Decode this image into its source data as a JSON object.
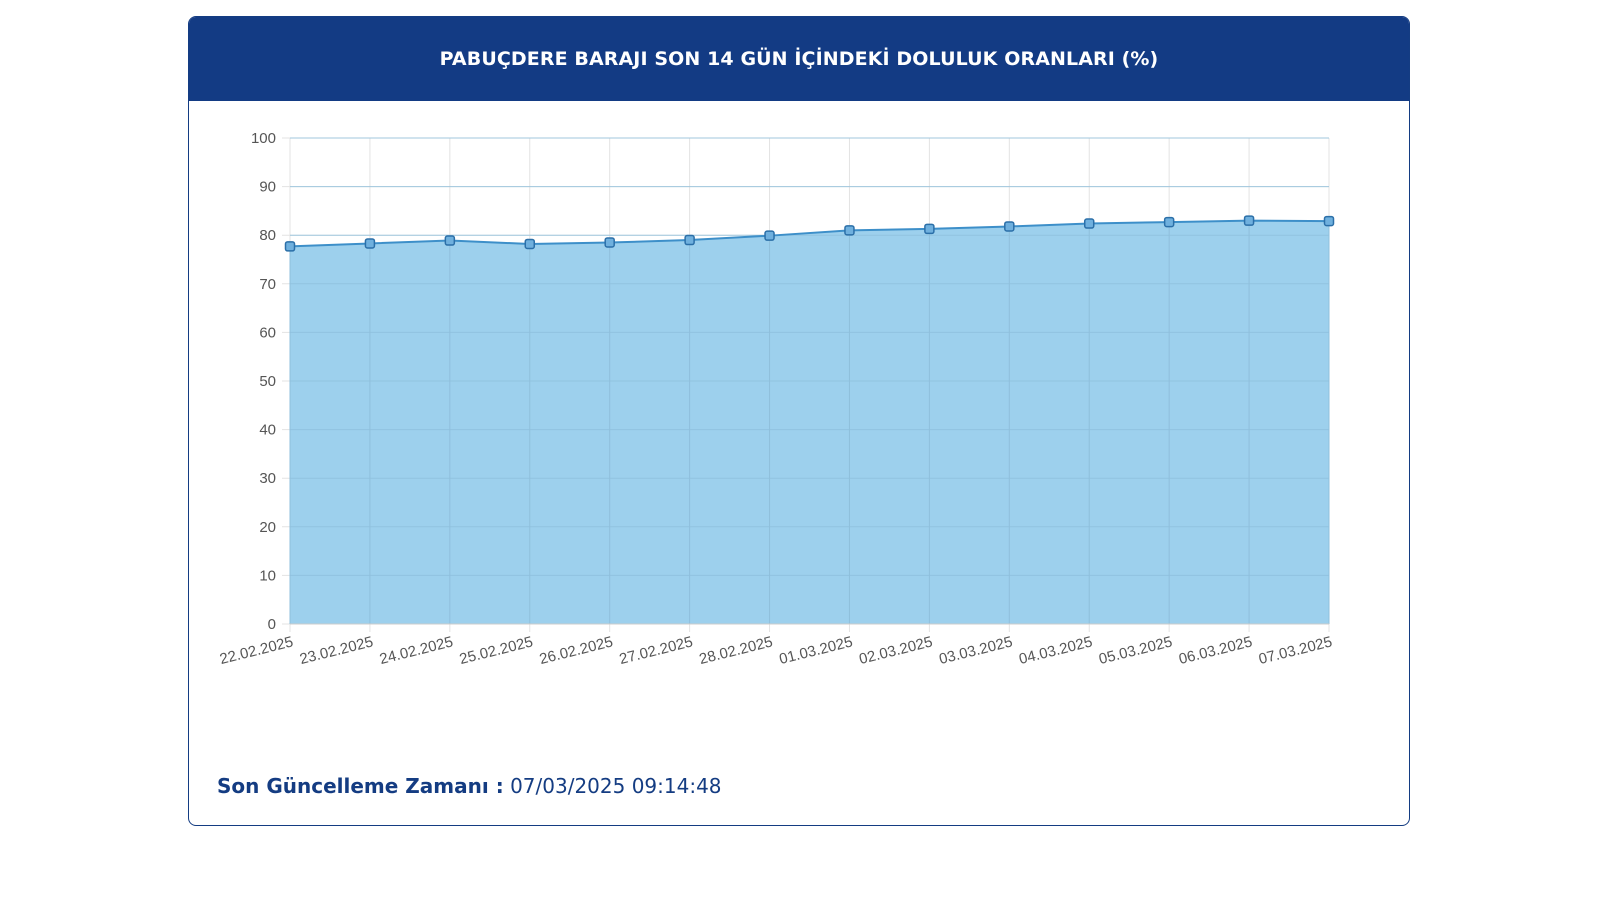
{
  "header": {
    "title": "PABUÇDERE BARAJI SON 14 GÜN İÇİNDEKİ DOLULUK ORANLARI (%)"
  },
  "footer": {
    "label": "Son Güncelleme Zamanı :",
    "value": "07/03/2025 09:14:48"
  },
  "colors": {
    "header_bg": "#133b84",
    "fill": "#9dd0ed",
    "line": "#3d8fc9",
    "grid": "#e3e3e3",
    "text": "#555555"
  },
  "chart_data": {
    "type": "area",
    "title": "PABUÇDERE BARAJI SON 14 GÜN İÇİNDEKİ DOLULUK ORANLARI (%)",
    "xlabel": "",
    "ylabel": "",
    "categories": [
      "22.02.2025",
      "23.02.2025",
      "24.02.2025",
      "25.02.2025",
      "26.02.2025",
      "27.02.2025",
      "28.02.2025",
      "01.03.2025",
      "02.03.2025",
      "03.03.2025",
      "04.03.2025",
      "05.03.2025",
      "06.03.2025",
      "07.03.2025"
    ],
    "values": [
      77.7,
      78.3,
      78.9,
      78.2,
      78.5,
      79.0,
      79.9,
      81.0,
      81.3,
      81.8,
      82.4,
      82.7,
      83.0,
      82.9
    ],
    "ylim": [
      0,
      100
    ],
    "yticks": [
      0,
      10,
      20,
      30,
      40,
      50,
      60,
      70,
      80,
      90,
      100
    ],
    "grid": true,
    "legend": "none"
  }
}
